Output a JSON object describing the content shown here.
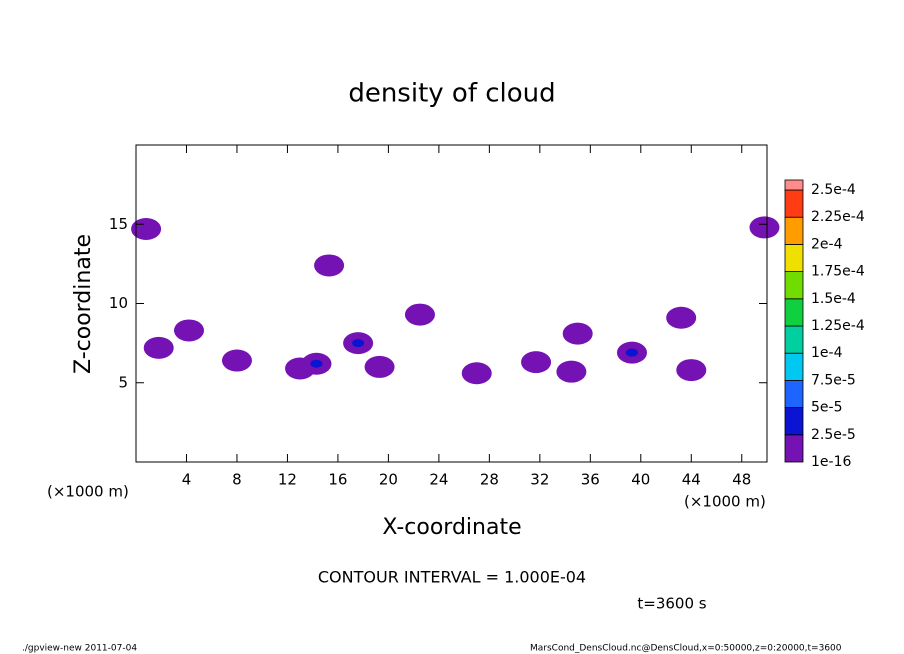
{
  "chart_data": {
    "type": "contour",
    "title": "density of cloud",
    "x_label": "X-coordinate",
    "y_label": "Z-coordinate",
    "x_unit": "(×1000 m)",
    "xlim": [
      0,
      50
    ],
    "xticks": [
      4,
      8,
      12,
      16,
      20,
      24,
      28,
      32,
      36,
      40,
      44,
      48
    ],
    "ylim": [
      0,
      20
    ],
    "yticks": [
      5,
      10,
      15
    ],
    "levels": [
      {
        "value": 1e-16,
        "label": "1e-16"
      },
      {
        "value": 2.5e-05,
        "label": "2.5e-5"
      },
      {
        "value": 5e-05,
        "label": "5e-5"
      },
      {
        "value": 7.5e-05,
        "label": "7.5e-5"
      },
      {
        "value": 0.0001,
        "label": "1e-4"
      },
      {
        "value": 0.000125,
        "label": "1.25e-4"
      },
      {
        "value": 0.00015,
        "label": "1.5e-4"
      },
      {
        "value": 0.000175,
        "label": "1.75e-4"
      },
      {
        "value": 0.0002,
        "label": "2e-4"
      },
      {
        "value": 0.000225,
        "label": "2.25e-4"
      },
      {
        "value": 0.00025,
        "label": "2.5e-4"
      }
    ],
    "level_colors": [
      "#7412b4",
      "#0a14d2",
      "#1e64ff",
      "#00c8f0",
      "#00d0a0",
      "#10d040",
      "#70dc00",
      "#f0e000",
      "#ff9c00",
      "#ff3c14",
      "#ff8c8c"
    ],
    "features": [
      {
        "x": 0.8,
        "z": 14.7,
        "value": 1e-05
      },
      {
        "x": 15.3,
        "z": 12.4,
        "value": 1e-05
      },
      {
        "x": 4.2,
        "z": 8.3,
        "value": 1e-05
      },
      {
        "x": 1.8,
        "z": 7.2,
        "value": 1e-05
      },
      {
        "x": 8.0,
        "z": 6.4,
        "value": 1e-05
      },
      {
        "x": 13.0,
        "z": 5.9,
        "value": 1e-05
      },
      {
        "x": 14.3,
        "z": 6.2,
        "value": 3e-05
      },
      {
        "x": 17.6,
        "z": 7.5,
        "value": 3e-05
      },
      {
        "x": 19.3,
        "z": 6.0,
        "value": 1e-05
      },
      {
        "x": 22.5,
        "z": 9.3,
        "value": 1e-05
      },
      {
        "x": 27.0,
        "z": 5.6,
        "value": 1e-05
      },
      {
        "x": 31.7,
        "z": 6.3,
        "value": 1e-05
      },
      {
        "x": 34.5,
        "z": 5.7,
        "value": 1e-05
      },
      {
        "x": 35.0,
        "z": 8.1,
        "value": 1e-05
      },
      {
        "x": 39.3,
        "z": 6.9,
        "value": 3e-05
      },
      {
        "x": 43.2,
        "z": 9.1,
        "value": 1e-05
      },
      {
        "x": 44.0,
        "z": 5.8,
        "value": 1e-05
      },
      {
        "x": 49.8,
        "z": 14.8,
        "value": 1e-05
      }
    ],
    "annotation": "CONTOUR INTERVAL = 1.000E-04",
    "time_label": "t=3600 s",
    "footer_left": "./gpview-new  2011-07-04",
    "footer_right": "MarsCond_DensCloud.nc@DensCloud,x=0:50000,z=0:20000,t=3600"
  }
}
